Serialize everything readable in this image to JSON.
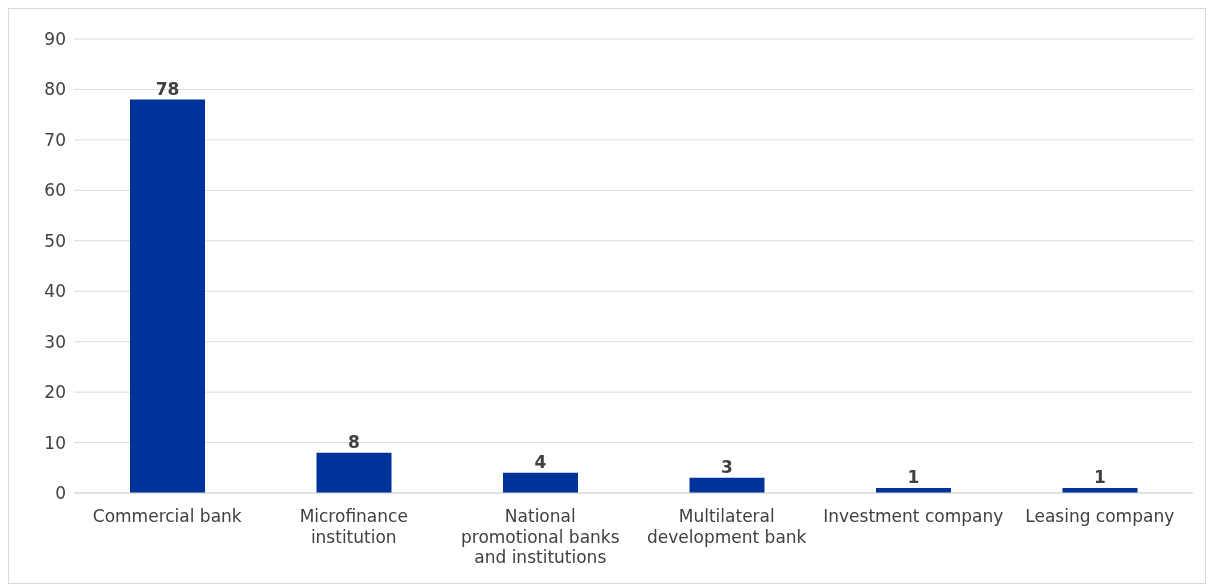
{
  "chart_data": {
    "type": "bar",
    "categories": [
      "Commercial bank",
      "Microfinance institution",
      "National promotional banks and institutions",
      "Multilateral development bank",
      "Investment company",
      "Leasing company"
    ],
    "values": [
      78,
      8,
      4,
      3,
      1,
      1
    ],
    "color": "#003399",
    "ylim": [
      0,
      90
    ],
    "yticks": [
      0,
      10,
      20,
      30,
      40,
      50,
      60,
      70,
      80,
      90
    ],
    "grid": "y",
    "data_labels": true
  }
}
